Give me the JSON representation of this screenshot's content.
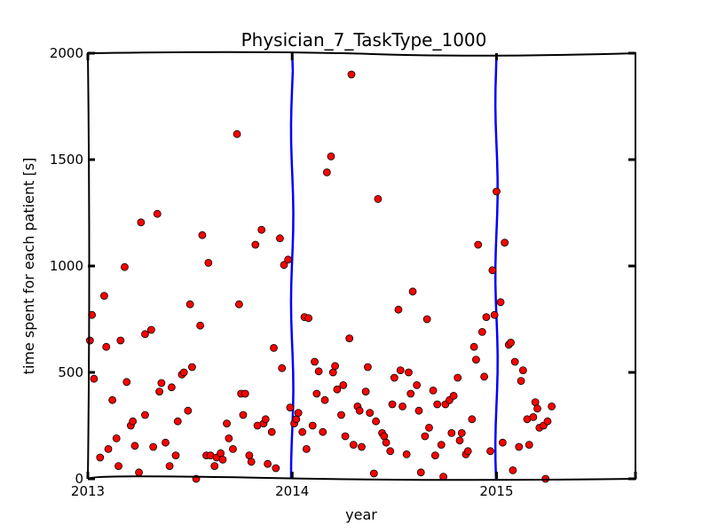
{
  "chart_data": {
    "type": "scatter",
    "title": "Physician_7_TaskType_1000",
    "xlabel": "year",
    "ylabel": "time spent for each patient [s]",
    "xlim": [
      2013.0,
      2015.68
    ],
    "ylim": [
      0,
      2000
    ],
    "x_ticks": [
      {
        "value": 2013,
        "label": "2013"
      },
      {
        "value": 2014,
        "label": "2014"
      },
      {
        "value": 2015,
        "label": "2015"
      }
    ],
    "y_ticks": [
      {
        "value": 0,
        "label": "0"
      },
      {
        "value": 500,
        "label": "500"
      },
      {
        "value": 1000,
        "label": "1000"
      },
      {
        "value": 1500,
        "label": "1500"
      },
      {
        "value": 2000,
        "label": "2000"
      }
    ],
    "year_boundaries": [
      2014,
      2015
    ],
    "grid": false,
    "colors": {
      "marker": "#ff0000",
      "marker_edge": "#000000",
      "boundary_line": "#0000ff"
    },
    "points": [
      [
        2013.01,
        650
      ],
      [
        2013.02,
        770
      ],
      [
        2013.03,
        470
      ],
      [
        2013.06,
        100
      ],
      [
        2013.08,
        860
      ],
      [
        2013.09,
        620
      ],
      [
        2013.1,
        140
      ],
      [
        2013.12,
        370
      ],
      [
        2013.14,
        190
      ],
      [
        2013.15,
        60
      ],
      [
        2013.16,
        650
      ],
      [
        2013.18,
        995
      ],
      [
        2013.19,
        455
      ],
      [
        2013.21,
        250
      ],
      [
        2013.22,
        270
      ],
      [
        2013.23,
        155
      ],
      [
        2013.25,
        30
      ],
      [
        2013.26,
        1205
      ],
      [
        2013.28,
        680
      ],
      [
        2013.28,
        300
      ],
      [
        2013.31,
        700
      ],
      [
        2013.32,
        150
      ],
      [
        2013.34,
        1245
      ],
      [
        2013.35,
        410
      ],
      [
        2013.36,
        450
      ],
      [
        2013.38,
        170
      ],
      [
        2013.4,
        60
      ],
      [
        2013.41,
        430
      ],
      [
        2013.43,
        110
      ],
      [
        2013.44,
        270
      ],
      [
        2013.46,
        490
      ],
      [
        2013.47,
        500
      ],
      [
        2013.49,
        320
      ],
      [
        2013.5,
        820
      ],
      [
        2013.51,
        525
      ],
      [
        2013.53,
        0
      ],
      [
        2013.55,
        720
      ],
      [
        2013.56,
        1145
      ],
      [
        2013.58,
        110
      ],
      [
        2013.59,
        1015
      ],
      [
        2013.6,
        110
      ],
      [
        2013.62,
        60
      ],
      [
        2013.63,
        100
      ],
      [
        2013.65,
        120
      ],
      [
        2013.66,
        90
      ],
      [
        2013.68,
        260
      ],
      [
        2013.69,
        190
      ],
      [
        2013.71,
        140
      ],
      [
        2013.73,
        1620
      ],
      [
        2013.74,
        820
      ],
      [
        2013.75,
        400
      ],
      [
        2013.76,
        300
      ],
      [
        2013.77,
        400
      ],
      [
        2013.79,
        110
      ],
      [
        2013.8,
        80
      ],
      [
        2013.82,
        1100
      ],
      [
        2013.83,
        250
      ],
      [
        2013.85,
        1170
      ],
      [
        2013.86,
        260
      ],
      [
        2013.87,
        280
      ],
      [
        2013.88,
        70
      ],
      [
        2013.9,
        220
      ],
      [
        2013.91,
        615
      ],
      [
        2013.92,
        50
      ],
      [
        2013.94,
        1130
      ],
      [
        2013.95,
        520
      ],
      [
        2013.96,
        1005
      ],
      [
        2013.98,
        1030
      ],
      [
        2013.99,
        335
      ],
      [
        2014.01,
        260
      ],
      [
        2014.02,
        280
      ],
      [
        2014.03,
        310
      ],
      [
        2014.05,
        220
      ],
      [
        2014.06,
        760
      ],
      [
        2014.07,
        140
      ],
      [
        2014.08,
        755
      ],
      [
        2014.1,
        250
      ],
      [
        2014.11,
        550
      ],
      [
        2014.12,
        400
      ],
      [
        2014.13,
        505
      ],
      [
        2014.15,
        220
      ],
      [
        2014.16,
        370
      ],
      [
        2014.17,
        1440
      ],
      [
        2014.19,
        1515
      ],
      [
        2014.2,
        500
      ],
      [
        2014.21,
        530
      ],
      [
        2014.22,
        420
      ],
      [
        2014.24,
        300
      ],
      [
        2014.25,
        440
      ],
      [
        2014.26,
        200
      ],
      [
        2014.28,
        660
      ],
      [
        2014.29,
        1900
      ],
      [
        2014.3,
        160
      ],
      [
        2014.32,
        340
      ],
      [
        2014.33,
        320
      ],
      [
        2014.34,
        150
      ],
      [
        2014.36,
        410
      ],
      [
        2014.37,
        525
      ],
      [
        2014.38,
        310
      ],
      [
        2014.4,
        25
      ],
      [
        2014.41,
        270
      ],
      [
        2014.42,
        1315
      ],
      [
        2014.44,
        215
      ],
      [
        2014.45,
        200
      ],
      [
        2014.46,
        170
      ],
      [
        2014.48,
        130
      ],
      [
        2014.49,
        350
      ],
      [
        2014.5,
        475
      ],
      [
        2014.52,
        795
      ],
      [
        2014.53,
        510
      ],
      [
        2014.54,
        340
      ],
      [
        2014.56,
        115
      ],
      [
        2014.57,
        500
      ],
      [
        2014.58,
        400
      ],
      [
        2014.59,
        880
      ],
      [
        2014.61,
        440
      ],
      [
        2014.62,
        320
      ],
      [
        2014.63,
        30
      ],
      [
        2014.65,
        200
      ],
      [
        2014.66,
        750
      ],
      [
        2014.67,
        240
      ],
      [
        2014.69,
        415
      ],
      [
        2014.7,
        110
      ],
      [
        2014.71,
        350
      ],
      [
        2014.73,
        160
      ],
      [
        2014.74,
        10
      ],
      [
        2014.75,
        350
      ],
      [
        2014.77,
        370
      ],
      [
        2014.78,
        215
      ],
      [
        2014.79,
        390
      ],
      [
        2014.81,
        475
      ],
      [
        2014.82,
        180
      ],
      [
        2014.83,
        215
      ],
      [
        2014.85,
        115
      ],
      [
        2014.86,
        130
      ],
      [
        2014.88,
        280
      ],
      [
        2014.89,
        620
      ],
      [
        2014.9,
        560
      ],
      [
        2014.91,
        1100
      ],
      [
        2014.93,
        690
      ],
      [
        2014.94,
        480
      ],
      [
        2014.95,
        760
      ],
      [
        2014.97,
        130
      ],
      [
        2014.98,
        980
      ],
      [
        2014.99,
        770
      ],
      [
        2015.0,
        1350
      ],
      [
        2015.02,
        830
      ],
      [
        2015.03,
        170
      ],
      [
        2015.04,
        1110
      ],
      [
        2015.06,
        630
      ],
      [
        2015.07,
        640
      ],
      [
        2015.08,
        40
      ],
      [
        2015.09,
        550
      ],
      [
        2015.11,
        150
      ],
      [
        2015.12,
        460
      ],
      [
        2015.13,
        510
      ],
      [
        2015.15,
        280
      ],
      [
        2015.16,
        160
      ],
      [
        2015.18,
        290
      ],
      [
        2015.19,
        360
      ],
      [
        2015.2,
        330
      ],
      [
        2015.21,
        240
      ],
      [
        2015.23,
        250
      ],
      [
        2015.24,
        0
      ],
      [
        2015.25,
        270
      ],
      [
        2015.27,
        340
      ]
    ]
  }
}
